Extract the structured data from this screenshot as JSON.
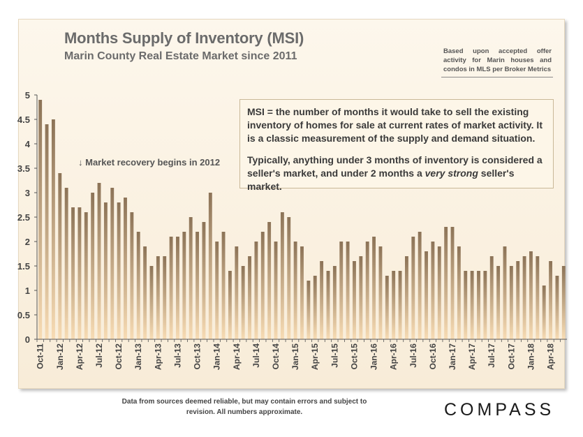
{
  "title": "Months Supply of Inventory (MSI)",
  "subtitle": "Marin County Real Estate Market since 2011",
  "source_note": "Based upon accepted offer activity for Marin houses and condos in MLS per Broker Metrics",
  "definition_para1": "MSI = the number of months it would take to sell the existing inventory of homes for sale at current rates of market activity. It is a classic measurement of the supply and demand situation.",
  "definition_para2_before": "Typically, anything under 3 months of inventory is considered a seller's market, and under 2 months a ",
  "definition_para2_emph": "very strong",
  "definition_para2_after": " seller's market.",
  "recovery_note": "↓ Market recovery begins in 2012",
  "disclaimer": "Data from sources deemed reliable, but may contain errors and subject to revision. All numbers approximate.",
  "brand": "COMPASS",
  "colors": {
    "bar_top": "#8c7357",
    "bar_bottom": "#f8dcb4",
    "axis": "#555555",
    "panel": "#fbf1e1"
  },
  "chart_data": {
    "type": "bar",
    "title": "Months Supply of Inventory (MSI)",
    "ylim": [
      0,
      5
    ],
    "yticks": [
      "0",
      "0.5",
      "1",
      "1.5",
      "2",
      "2.5",
      "3",
      "3.5",
      "4",
      "4.5",
      "5"
    ],
    "grid": false,
    "categories": [
      "Oct-11",
      "Nov-11",
      "Dec-11",
      "Jan-12",
      "Feb-12",
      "Mar-12",
      "Apr-12",
      "May-12",
      "Jun-12",
      "Jul-12",
      "Aug-12",
      "Sep-12",
      "Oct-12",
      "Nov-12",
      "Dec-12",
      "Jan-13",
      "Feb-13",
      "Mar-13",
      "Apr-13",
      "May-13",
      "Jun-13",
      "Jul-13",
      "Aug-13",
      "Sep-13",
      "Oct-13",
      "Nov-13",
      "Dec-13",
      "Jan-14",
      "Feb-14",
      "Mar-14",
      "Apr-14",
      "May-14",
      "Jun-14",
      "Jul-14",
      "Aug-14",
      "Sep-14",
      "Oct-14",
      "Nov-14",
      "Dec-14",
      "Jan-15",
      "Feb-15",
      "Mar-15",
      "Apr-15",
      "May-15",
      "Jun-15",
      "Jul-15",
      "Aug-15",
      "Sep-15",
      "Oct-15",
      "Nov-15",
      "Dec-15",
      "Jan-16",
      "Feb-16",
      "Mar-16",
      "Apr-16",
      "May-16",
      "Jun-16",
      "Jul-16",
      "Aug-16",
      "Sep-16",
      "Oct-16",
      "Nov-16",
      "Dec-16",
      "Jan-17",
      "Feb-17",
      "Mar-17",
      "Apr-17",
      "May-17",
      "Jun-17",
      "Jul-17",
      "Aug-17",
      "Sep-17",
      "Oct-17",
      "Nov-17",
      "Dec-17",
      "Jan-18",
      "Feb-18",
      "Mar-18",
      "Apr-18",
      "May-18",
      "Jun-18"
    ],
    "tick_labels": [
      "Oct-11",
      "Jan-12",
      "Apr-12",
      "Jul-12",
      "Oct-12",
      "Jan-13",
      "Apr-13",
      "Jul-13",
      "Oct-13",
      "Jan-14",
      "Apr-14",
      "Jul-14",
      "Oct-14",
      "Jan-15",
      "Apr-15",
      "Jul-15",
      "Oct-15",
      "Jan-16",
      "Apr-16",
      "Jul-16",
      "Oct-16",
      "Jan-17",
      "Apr-17",
      "Jul-17",
      "Oct-17",
      "Jan-18",
      "Apr-18"
    ],
    "values": [
      4.9,
      4.4,
      4.5,
      3.4,
      3.1,
      2.7,
      2.7,
      2.6,
      3.0,
      3.2,
      2.8,
      3.1,
      2.8,
      2.9,
      2.6,
      2.2,
      1.9,
      1.5,
      1.7,
      1.7,
      2.1,
      2.1,
      2.2,
      2.5,
      2.2,
      2.4,
      3.0,
      2.0,
      2.2,
      1.4,
      1.9,
      1.5,
      1.7,
      2.0,
      2.2,
      2.4,
      2.0,
      2.6,
      2.5,
      2.0,
      1.9,
      1.2,
      1.3,
      1.6,
      1.4,
      1.5,
      2.0,
      2.0,
      1.6,
      1.7,
      2.0,
      2.1,
      1.9,
      1.3,
      1.4,
      1.4,
      1.7,
      2.1,
      2.2,
      1.8,
      2.0,
      1.9,
      2.3,
      2.3,
      1.9,
      1.4,
      1.4,
      1.4,
      1.4,
      1.7,
      1.5,
      1.9,
      1.5,
      1.6,
      1.7,
      1.8,
      1.7,
      1.1,
      1.6,
      1.3,
      1.5
    ]
  }
}
